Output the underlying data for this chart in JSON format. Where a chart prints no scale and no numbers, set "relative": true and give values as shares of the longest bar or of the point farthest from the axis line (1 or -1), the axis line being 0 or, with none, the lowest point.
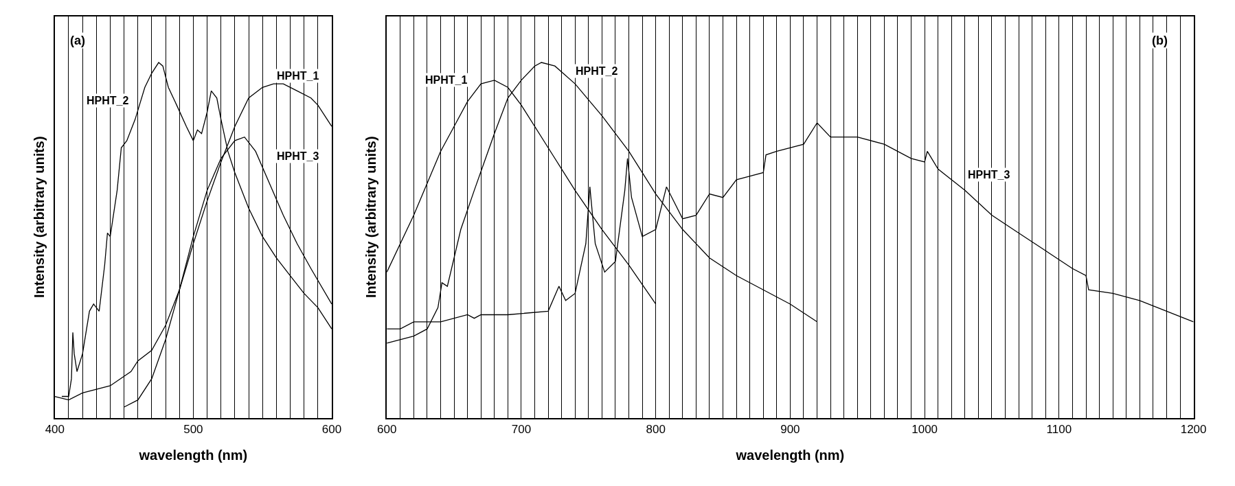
{
  "chart_data": [
    {
      "type": "line",
      "relative": true,
      "xlabel": "wavelength (nm)",
      "ylabel": "Intensity (arbitrary units)",
      "grid": "x",
      "legend": false,
      "xlim": [
        400,
        600
      ],
      "xticks": [
        400,
        {
          "value": 410,
          "label": null
        },
        {
          "value": 420,
          "label": null
        },
        {
          "value": 430,
          "label": null
        },
        {
          "value": 440,
          "label": null
        },
        {
          "value": 450,
          "label": null
        },
        {
          "value": 460,
          "label": null
        },
        {
          "value": 470,
          "label": null
        },
        {
          "value": 480,
          "label": null
        },
        {
          "value": 490,
          "label": null
        },
        500,
        {
          "value": 510,
          "label": null
        },
        {
          "value": 520,
          "label": null
        },
        {
          "value": 530,
          "label": null
        },
        {
          "value": 540,
          "label": null
        },
        {
          "value": 550,
          "label": null
        },
        {
          "value": 560,
          "label": null
        },
        {
          "value": 570,
          "label": null
        },
        {
          "value": 580,
          "label": null
        },
        {
          "value": 590,
          "label": null
        },
        600
      ],
      "series": [
        {
          "name": "HPHT_1",
          "color": "#000000",
          "x": [
            400,
            410,
            420,
            440,
            455,
            460,
            470,
            480,
            490,
            500,
            510,
            520,
            530,
            540,
            550,
            558,
            565,
            575,
            585,
            590,
            600
          ],
          "values": [
            0.06,
            0.05,
            0.07,
            0.09,
            0.13,
            0.16,
            0.19,
            0.26,
            0.36,
            0.49,
            0.61,
            0.72,
            0.82,
            0.9,
            0.93,
            0.94,
            0.94,
            0.92,
            0.9,
            0.88,
            0.82
          ]
        },
        {
          "name": "HPHT_2",
          "color": "#000000",
          "x": [
            405,
            410,
            412,
            413,
            414,
            416,
            420,
            425,
            428,
            432,
            436,
            438,
            440,
            445,
            448,
            452,
            458,
            465,
            470,
            475,
            478,
            482,
            488,
            495,
            500,
            503,
            506,
            510,
            513,
            517,
            520,
            525,
            530,
            540,
            550,
            560,
            570,
            580,
            590,
            600
          ],
          "values": [
            0.06,
            0.06,
            0.11,
            0.24,
            0.18,
            0.13,
            0.18,
            0.3,
            0.32,
            0.3,
            0.43,
            0.52,
            0.51,
            0.64,
            0.76,
            0.78,
            0.84,
            0.93,
            0.97,
            1.0,
            0.99,
            0.93,
            0.88,
            0.82,
            0.78,
            0.81,
            0.8,
            0.86,
            0.92,
            0.9,
            0.84,
            0.75,
            0.69,
            0.59,
            0.51,
            0.45,
            0.4,
            0.35,
            0.31,
            0.25
          ]
        },
        {
          "name": "HPHT_3",
          "color": "#000000",
          "x": [
            450,
            460,
            470,
            480,
            490,
            500,
            510,
            520,
            530,
            537,
            545,
            555,
            565,
            575,
            585,
            600
          ],
          "values": [
            0.03,
            0.05,
            0.11,
            0.22,
            0.36,
            0.51,
            0.64,
            0.73,
            0.78,
            0.79,
            0.75,
            0.66,
            0.57,
            0.49,
            0.42,
            0.32
          ]
        }
      ],
      "annotations": [
        "(a)"
      ]
    },
    {
      "type": "line",
      "relative": true,
      "xlabel": "wavelength (nm)",
      "ylabel": "Intensity (arbitrary units)",
      "grid": "x",
      "legend": false,
      "xlim": [
        600,
        1200
      ],
      "xticks": [
        600,
        {
          "value": 610,
          "label": null
        },
        {
          "value": 620,
          "label": null
        },
        {
          "value": 630,
          "label": null
        },
        {
          "value": 640,
          "label": null
        },
        {
          "value": 650,
          "label": null
        },
        {
          "value": 660,
          "label": null
        },
        {
          "value": 670,
          "label": null
        },
        {
          "value": 680,
          "label": null
        },
        {
          "value": 690,
          "label": null
        },
        700,
        {
          "value": 710,
          "label": null
        },
        {
          "value": 720,
          "label": null
        },
        {
          "value": 730,
          "label": null
        },
        {
          "value": 740,
          "label": null
        },
        {
          "value": 750,
          "label": null
        },
        {
          "value": 760,
          "label": null
        },
        {
          "value": 770,
          "label": null
        },
        {
          "value": 780,
          "label": null
        },
        {
          "value": 790,
          "label": null
        },
        800,
        {
          "value": 810,
          "label": null
        },
        {
          "value": 820,
          "label": null
        },
        {
          "value": 830,
          "label": null
        },
        {
          "value": 840,
          "label": null
        },
        {
          "value": 850,
          "label": null
        },
        {
          "value": 860,
          "label": null
        },
        {
          "value": 870,
          "label": null
        },
        {
          "value": 880,
          "label": null
        },
        {
          "value": 890,
          "label": null
        },
        900,
        {
          "value": 910,
          "label": null
        },
        {
          "value": 920,
          "label": null
        },
        {
          "value": 930,
          "label": null
        },
        {
          "value": 940,
          "label": null
        },
        {
          "value": 950,
          "label": null
        },
        {
          "value": 960,
          "label": null
        },
        {
          "value": 970,
          "label": null
        },
        {
          "value": 980,
          "label": null
        },
        {
          "value": 990,
          "label": null
        },
        1000,
        {
          "value": 1010,
          "label": null
        },
        {
          "value": 1020,
          "label": null
        },
        {
          "value": 1030,
          "label": null
        },
        {
          "value": 1040,
          "label": null
        },
        {
          "value": 1050,
          "label": null
        },
        {
          "value": 1060,
          "label": null
        },
        {
          "value": 1070,
          "label": null
        },
        {
          "value": 1080,
          "label": null
        },
        {
          "value": 1090,
          "label": null
        },
        1100,
        {
          "value": 1110,
          "label": null
        },
        {
          "value": 1120,
          "label": null
        },
        {
          "value": 1130,
          "label": null
        },
        {
          "value": 1140,
          "label": null
        },
        {
          "value": 1150,
          "label": null
        },
        {
          "value": 1160,
          "label": null
        },
        {
          "value": 1170,
          "label": null
        },
        {
          "value": 1180,
          "label": null
        },
        {
          "value": 1190,
          "label": null
        },
        1200
      ],
      "series": [
        {
          "name": "HPHT_1",
          "color": "#000000",
          "x": [
            600,
            620,
            640,
            650,
            660,
            670,
            680,
            690,
            700,
            720,
            740,
            760,
            780,
            800
          ],
          "values": [
            0.41,
            0.57,
            0.75,
            0.82,
            0.89,
            0.94,
            0.95,
            0.93,
            0.88,
            0.76,
            0.64,
            0.53,
            0.43,
            0.32
          ]
        },
        {
          "name": "HPHT_2",
          "color": "#000000",
          "x": [
            600,
            620,
            630,
            638,
            641,
            645,
            655,
            665,
            680,
            690,
            700,
            710,
            715,
            725,
            740,
            760,
            780,
            800,
            820,
            840,
            860,
            880,
            900,
            920
          ],
          "values": [
            0.21,
            0.23,
            0.25,
            0.31,
            0.38,
            0.37,
            0.53,
            0.64,
            0.8,
            0.9,
            0.95,
            0.99,
            1.0,
            0.99,
            0.94,
            0.85,
            0.75,
            0.63,
            0.53,
            0.45,
            0.4,
            0.36,
            0.32,
            0.27
          ]
        },
        {
          "name": "HPHT_3",
          "color": "#000000",
          "x": [
            600,
            610,
            620,
            640,
            660,
            665,
            670,
            690,
            720,
            728,
            733,
            740,
            748,
            751,
            755,
            762,
            770,
            777,
            779,
            782,
            790,
            800,
            808,
            812,
            820,
            830,
            840,
            850,
            860,
            880,
            882,
            890,
            910,
            920,
            930,
            950,
            970,
            990,
            1000,
            1002,
            1010,
            1030,
            1050,
            1070,
            1090,
            1110,
            1120,
            1122,
            1140,
            1160,
            1180,
            1200
          ],
          "values": [
            0.25,
            0.25,
            0.27,
            0.27,
            0.29,
            0.28,
            0.29,
            0.29,
            0.3,
            0.37,
            0.33,
            0.35,
            0.49,
            0.65,
            0.49,
            0.41,
            0.44,
            0.64,
            0.73,
            0.62,
            0.51,
            0.53,
            0.65,
            0.62,
            0.56,
            0.57,
            0.63,
            0.62,
            0.67,
            0.69,
            0.74,
            0.75,
            0.77,
            0.83,
            0.79,
            0.79,
            0.77,
            0.73,
            0.72,
            0.75,
            0.7,
            0.64,
            0.57,
            0.52,
            0.47,
            0.42,
            0.4,
            0.36,
            0.35,
            0.33,
            0.3,
            0.27
          ]
        }
      ],
      "annotations": [
        "(b)"
      ]
    }
  ]
}
